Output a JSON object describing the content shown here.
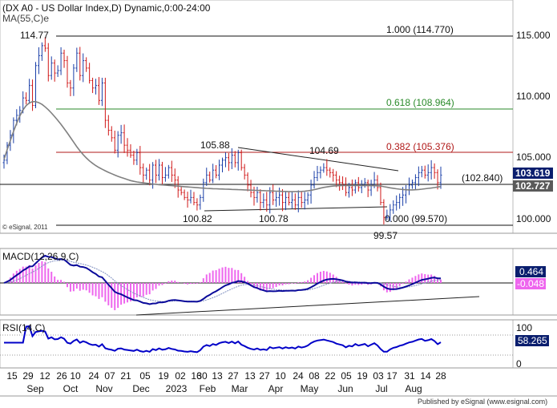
{
  "chart_data": {
    "type": "candlestick",
    "title": "(DX A0 - US Dollar Index,D) Dynamic,0:00-24:00",
    "ma_label": "MA(55,C)e",
    "copyright": "© eSignal, 2011",
    "publisher": "Published by eSignal (www.esignal.com)",
    "colors": {
      "up": "#1a3fa8",
      "down": "#d01818",
      "ma": "#808080",
      "macd": "#0a0a9a",
      "hist": "#ee66ee",
      "rsi": "#0000c8",
      "fib_mid": "#2a8a2a",
      "fib_382": "#b01818"
    },
    "price_axis": {
      "ticks": [
        "115.000",
        "110.000",
        "105.000",
        "100.000"
      ],
      "ylim": [
        98.0,
        116.6
      ]
    },
    "fib_levels": [
      {
        "label": "1.000 (114.770)",
        "value": 114.77
      },
      {
        "label": "0.618 (108.964)",
        "value": 108.964
      },
      {
        "label": "0.382 (105.376)",
        "value": 105.376
      },
      {
        "label": "0.000 (99.570)",
        "value": 99.57
      }
    ],
    "horizontal_line": {
      "label": "(102.840)",
      "value": 102.84
    },
    "price_annotations": [
      "114.77",
      "105.88",
      "104.69",
      "100.82",
      "100.78",
      "99.57"
    ],
    "badges": [
      {
        "text": "103.619",
        "value": 103.619,
        "bg": "#0a1e6e"
      },
      {
        "text": "102.727",
        "value": 102.727,
        "bg": "#5a5a5a"
      }
    ],
    "macd": {
      "label": "MACD(12,26,9,C)",
      "value": "0.464",
      "hist_value": "-0.048"
    },
    "rsi": {
      "label": "RSI(14,C)",
      "value": "58.265",
      "upper": "100",
      "lower": "0"
    },
    "x_axis": {
      "day_ticks": [
        "15",
        "29",
        "12",
        "26",
        "10",
        "24",
        "07",
        "21",
        "05",
        "19",
        "02",
        "16",
        "30",
        "13",
        "27",
        "13",
        "27",
        "10",
        "24",
        "08",
        "22",
        "05",
        "19",
        "03",
        "17",
        "31",
        "14",
        "28"
      ],
      "months": [
        "Sep",
        "Oct",
        "Nov",
        "Dec",
        "2023",
        "Feb",
        "Mar",
        "Apr",
        "May",
        "Jun",
        "Jul",
        "Aug"
      ]
    },
    "closes": [
      104.8,
      106.0,
      106.8,
      108.0,
      108.4,
      108.8,
      109.8,
      109.6,
      110.8,
      109.2,
      112.4,
      113.2,
      114.0,
      113.8,
      111.6,
      112.6,
      111.8,
      112.0,
      113.4,
      112.8,
      111.0,
      110.6,
      112.2,
      113.4,
      111.6,
      112.8,
      112.2,
      111.2,
      110.6,
      110.8,
      109.6,
      111.0,
      108.0,
      107.2,
      106.6,
      105.6,
      106.8,
      107.0,
      106.0,
      105.6,
      105.2,
      104.8,
      105.4,
      104.2,
      103.6,
      104.0,
      103.2,
      104.4,
      103.6,
      104.4,
      103.4,
      103.6,
      104.2,
      103.6,
      103.2,
      102.4,
      102.2,
      101.8,
      101.6,
      101.8,
      101.4,
      101.2,
      101.8,
      103.0,
      103.6,
      103.2,
      104.0,
      103.6,
      104.4,
      104.8,
      105.0,
      104.6,
      105.2,
      104.6,
      105.4,
      104.2,
      103.6,
      102.8,
      102.2,
      101.8,
      102.2,
      101.4,
      101.6,
      101.2,
      102.2,
      101.6,
      101.8,
      102.0,
      101.4,
      101.8,
      101.4,
      101.6,
      101.2,
      101.8,
      101.4,
      101.6,
      102.0,
      102.8,
      103.4,
      103.8,
      104.0,
      104.2,
      104.0,
      103.8,
      103.6,
      103.2,
      103.0,
      102.8,
      102.2,
      102.6,
      102.4,
      103.0,
      102.6,
      102.8,
      103.0,
      102.4,
      102.8,
      103.2,
      102.6,
      101.4,
      100.2,
      100.2,
      100.8,
      101.2,
      101.4,
      101.8,
      102.0,
      102.4,
      102.8,
      103.0,
      103.4,
      103.8,
      104.0,
      103.6,
      103.8,
      104.2,
      103.8,
      103.0,
      103.6
    ],
    "ma": [
      104.85,
      105.64,
      106.38,
      107.09,
      107.76,
      108.35,
      108.83,
      109.18,
      109.4,
      109.5,
      109.5,
      109.42,
      109.28,
      109.08,
      108.85,
      108.59,
      108.3,
      108.0,
      107.68,
      107.34,
      106.98,
      106.62,
      106.25,
      105.88,
      105.55,
      105.25,
      104.98,
      104.74,
      104.54,
      104.36,
      104.21,
      104.07,
      103.94,
      103.82,
      103.71,
      103.6,
      103.5,
      103.41,
      103.33,
      103.24,
      103.16,
      103.1,
      103.05,
      103.01,
      102.98,
      102.95,
      102.92,
      102.89,
      102.86,
      102.83,
      102.81,
      102.79,
      102.77,
      102.75,
      102.73,
      102.71,
      102.69,
      102.67,
      102.65,
      102.63,
      102.61,
      102.59,
      102.57,
      102.55,
      102.53,
      102.52,
      102.51,
      102.5,
      102.49,
      102.48,
      102.47,
      102.46,
      102.45,
      102.44,
      102.43,
      102.42,
      102.41,
      102.4,
      102.39,
      102.38,
      102.37,
      102.36,
      102.35,
      102.34,
      102.33,
      102.32,
      102.31,
      102.3,
      102.29,
      102.28,
      102.27,
      102.27,
      102.27,
      102.28,
      102.29,
      102.31,
      102.34,
      102.38,
      102.43,
      102.49,
      102.55,
      102.61,
      102.65,
      102.69,
      102.72,
      102.74,
      102.75,
      102.76,
      102.76,
      102.76,
      102.76,
      102.76,
      102.76,
      102.76,
      102.76,
      102.75,
      102.75,
      102.75,
      102.74,
      102.72,
      102.67,
      102.62,
      102.58,
      102.54,
      102.5,
      102.47,
      102.44,
      102.42,
      102.41,
      102.41,
      102.42,
      102.44,
      102.47,
      102.5,
      102.53,
      102.56,
      102.6,
      102.64,
      102.68
    ]
  }
}
